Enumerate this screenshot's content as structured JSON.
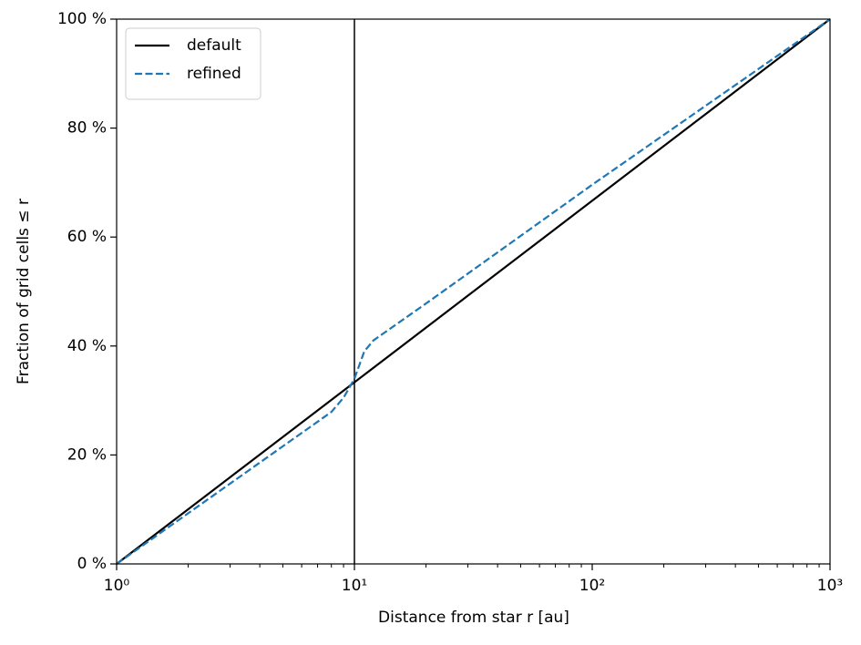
{
  "chart_data": {
    "type": "line",
    "xlabel": "Distance from star r [au]",
    "ylabel": "Fraction of grid cells ≤ r",
    "xscale": "log",
    "xlim": [
      1,
      1000
    ],
    "ylim": [
      0,
      100
    ],
    "xticks": [
      {
        "value": 1,
        "label": "10⁰"
      },
      {
        "value": 10,
        "label": "10¹"
      },
      {
        "value": 100,
        "label": "10²"
      },
      {
        "value": 1000,
        "label": "10³"
      }
    ],
    "xminorticks": [
      2,
      3,
      4,
      5,
      6,
      7,
      8,
      9,
      20,
      30,
      40,
      50,
      60,
      70,
      80,
      90,
      200,
      300,
      400,
      500,
      600,
      700,
      800,
      900
    ],
    "yticks": [
      {
        "value": 0,
        "label": "0 %"
      },
      {
        "value": 20,
        "label": "20 %"
      },
      {
        "value": 40,
        "label": "40 %"
      },
      {
        "value": 60,
        "label": "60 %"
      },
      {
        "value": 80,
        "label": "80 %"
      },
      {
        "value": 100,
        "label": "100 %"
      }
    ],
    "vline": {
      "x": 10,
      "color": "#000000"
    },
    "legend": "upper left",
    "series": [
      {
        "name": "default",
        "color": "#000000",
        "dash": "solid",
        "x": [
          1,
          1000
        ],
        "values": [
          0,
          100
        ]
      },
      {
        "name": "refined",
        "color": "#1f77b4",
        "dash": "dashed",
        "x": [
          1,
          2,
          4,
          7,
          8,
          9,
          10,
          11,
          12,
          20,
          100,
          1000
        ],
        "values": [
          0,
          9.3,
          18.6,
          26.1,
          27.9,
          30.5,
          34,
          39,
          41,
          47.8,
          69.6,
          100
        ]
      }
    ]
  }
}
